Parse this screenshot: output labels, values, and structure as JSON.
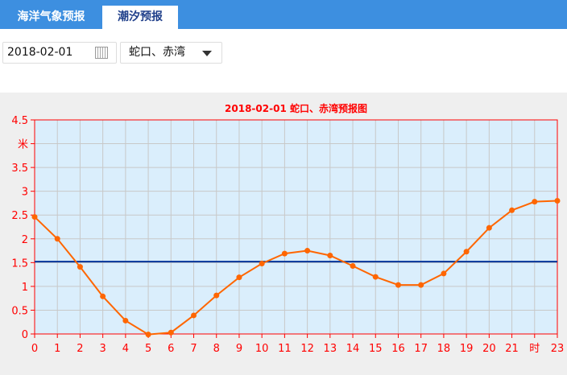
{
  "tabs": [
    {
      "label": "海洋气象预报",
      "active": false
    },
    {
      "label": "潮汐预报",
      "active": true
    }
  ],
  "date_input": {
    "value": "2018-02-01",
    "icon": "calendar-icon"
  },
  "location_select": {
    "value": "蛇口、赤湾",
    "icon": "caret-down-icon"
  },
  "chart_data": {
    "type": "line",
    "title": "2018-02-01 蛇口、赤湾预报图",
    "ylabel": "米",
    "xlabel": "时",
    "ylim": [
      0,
      4.5
    ],
    "xlim": [
      0,
      23
    ],
    "y_ticks": [
      "0",
      "0.5",
      "1",
      "1.5",
      "2",
      "2.5",
      "3",
      "3.5",
      "米",
      "4.5"
    ],
    "x_ticks": [
      "0",
      "1",
      "2",
      "3",
      "4",
      "5",
      "6",
      "7",
      "8",
      "9",
      "10",
      "11",
      "12",
      "13",
      "14",
      "15",
      "16",
      "17",
      "18",
      "19",
      "20",
      "21",
      "时",
      "23"
    ],
    "x": [
      0,
      1,
      2,
      3,
      4,
      5,
      6,
      7,
      8,
      9,
      10,
      11,
      12,
      13,
      14,
      15,
      16,
      17,
      18,
      19,
      20,
      21,
      22,
      23
    ],
    "values": [
      2.46,
      2.0,
      1.41,
      0.79,
      0.28,
      -0.01,
      0.03,
      0.39,
      0.81,
      1.19,
      1.48,
      1.69,
      1.75,
      1.65,
      1.43,
      1.2,
      1.03,
      1.03,
      1.27,
      1.73,
      2.23,
      2.6,
      2.78,
      2.8
    ],
    "reference_line": 1.52,
    "grid": true,
    "colors": {
      "series": "#ff6600",
      "reference": "#003399",
      "axis": "#ff0000",
      "plot_bg": "#daeefc",
      "grid": "#c8c8c8"
    }
  }
}
